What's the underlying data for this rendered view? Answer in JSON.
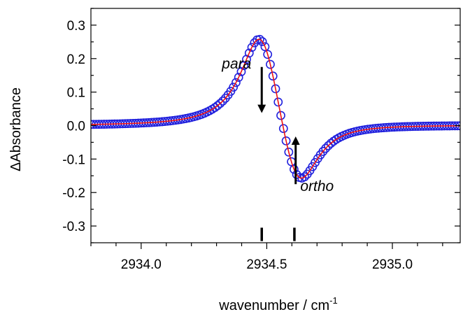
{
  "chart_data": {
    "type": "scatter",
    "title": "",
    "xlabel": "wavenumber / cm",
    "xlabel_sup": "-1",
    "ylabel": "ΔAbsorbance",
    "xlim": [
      2933.8,
      2935.27
    ],
    "ylim": [
      -0.35,
      0.35
    ],
    "xticks": [
      {
        "value": 2934.0,
        "label": "2934.0"
      },
      {
        "value": 2934.5,
        "label": "2934.5"
      },
      {
        "value": 2935.0,
        "label": "2935.0"
      }
    ],
    "yticks": [
      {
        "value": 0.3,
        "label": "0.3"
      },
      {
        "value": 0.2,
        "label": "0.2"
      },
      {
        "value": 0.1,
        "label": "0.1"
      },
      {
        "value": 0.0,
        "label": "0.0"
      },
      {
        "value": -0.1,
        "label": "-0.1"
      },
      {
        "value": -0.2,
        "label": "-0.2"
      },
      {
        "value": -0.3,
        "label": "-0.3"
      }
    ],
    "grid": false,
    "legend": "none",
    "model": {
      "type": "lorentzian-difference",
      "x_para": 2934.48,
      "x_ortho": 2934.62,
      "gamma": 0.1,
      "amplitude_para": 0.0342,
      "amplitude_ortho": 0.0263
    },
    "series": [
      {
        "kind": "markers",
        "color": "#2222dd",
        "marker": "open-circle"
      },
      {
        "kind": "line",
        "color": "#ee1111"
      }
    ],
    "annotations": [
      {
        "text": "para",
        "x": 2934.38,
        "y": 0.17
      },
      {
        "text": "ortho",
        "x": 2934.7,
        "y": -0.195
      }
    ],
    "arrows": [
      {
        "x": 2934.48,
        "y_from": 0.175,
        "y_to": 0.05,
        "direction": "down"
      },
      {
        "x": 2934.615,
        "y_from": -0.175,
        "y_to": -0.045,
        "direction": "up"
      }
    ],
    "line_position_markers": [
      {
        "x": 2934.48,
        "y_from": -0.345,
        "y_to": -0.305
      },
      {
        "x": 2934.61,
        "y_from": -0.345,
        "y_to": -0.305
      }
    ]
  }
}
